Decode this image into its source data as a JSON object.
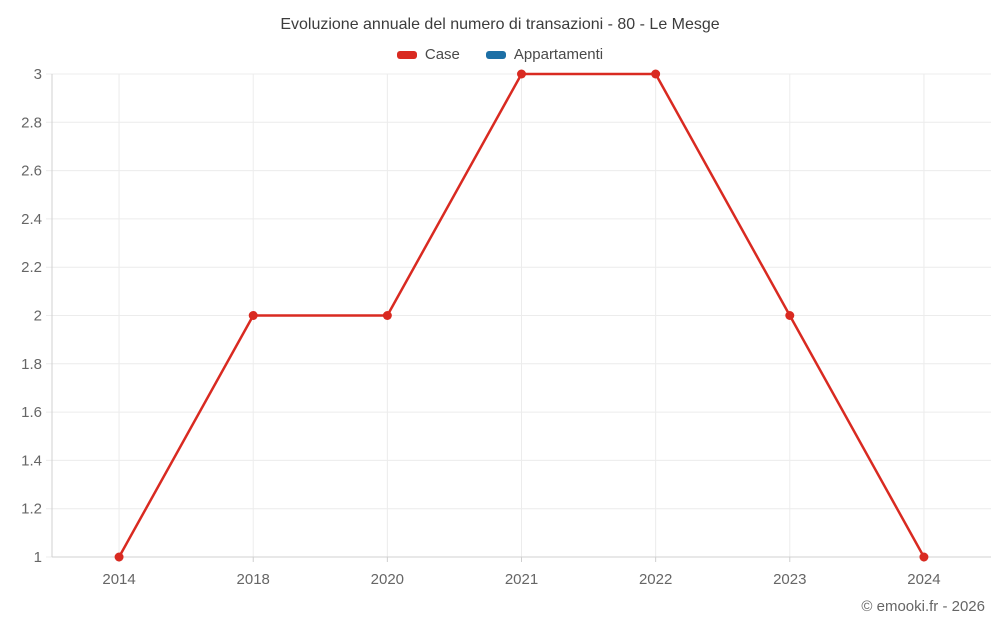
{
  "title": "Evoluzione annuale del numero di transazioni - 80 - Le Mesge",
  "legend": {
    "items": [
      {
        "label": "Case",
        "color": "#d92a21"
      },
      {
        "label": "Appartamenti",
        "color": "#1d6fa5"
      }
    ]
  },
  "footer": {
    "credit": "© emooki.fr - 2026"
  },
  "colors": {
    "grid": "#ececec",
    "axis": "#d0d0d0",
    "tick": "#cfcfcf",
    "tick_label": "#666666",
    "title_text": "#3c3c3c"
  },
  "chart_data": {
    "type": "line",
    "title": "Evoluzione annuale del numero di transazioni - 80 - Le Mesge",
    "categories": [
      "2014",
      "2018",
      "2020",
      "2021",
      "2022",
      "2023",
      "2024"
    ],
    "series": [
      {
        "name": "Case",
        "color": "#d92a21",
        "values": [
          1,
          2,
          2,
          3,
          3,
          2,
          1
        ]
      },
      {
        "name": "Appartamenti",
        "color": "#1d6fa5",
        "values": []
      }
    ],
    "xlabel": "",
    "ylabel": "",
    "ylim": [
      1,
      3
    ],
    "ytick_step": 0.2,
    "grid": true,
    "legend_position": "top"
  }
}
